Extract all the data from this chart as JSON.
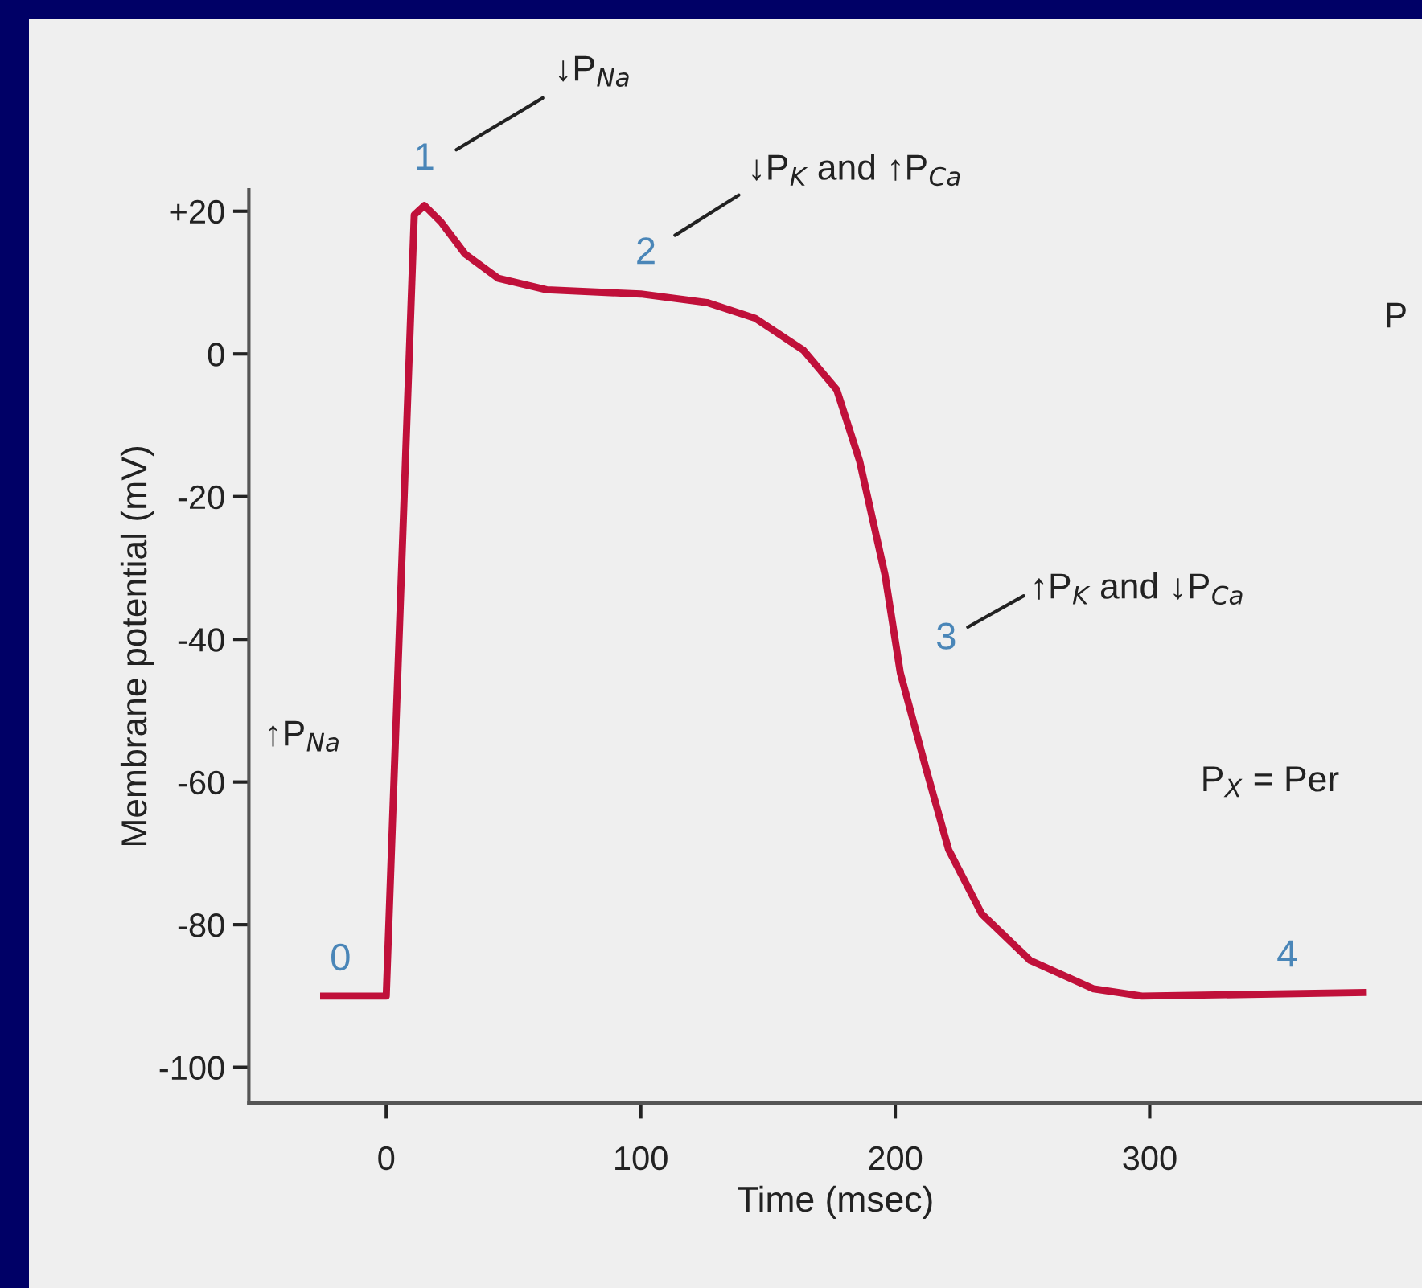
{
  "chart_data": {
    "type": "line",
    "xlabel": "Time (msec)",
    "ylabel": "Membrane potential (mV)",
    "xlim": [
      -54,
      407
    ],
    "ylim": [
      -105,
      23
    ],
    "xticks": [
      0,
      100,
      200,
      300
    ],
    "yticks": [
      {
        "value": 20,
        "label": "+20"
      },
      0,
      -20,
      -40,
      -60,
      -80,
      -100
    ],
    "grid": false,
    "legend": false,
    "marker": "none",
    "line_style": "solid",
    "series": [
      {
        "color": "#c0103a",
        "x": [
          -26,
          0,
          11,
          15,
          21.5,
          31,
          44,
          63,
          100,
          126,
          145,
          164,
          177,
          186,
          196,
          202,
          212,
          221,
          234,
          253,
          278,
          297,
          385
        ],
        "values": [
          -90,
          -90,
          19.5,
          20.8,
          18.5,
          14,
          10.6,
          9,
          8.4,
          7.2,
          5,
          0.5,
          -5,
          -15,
          -31,
          -44.7,
          -58,
          -69.5,
          -78.5,
          -85,
          -89,
          -90,
          -89.5
        ]
      }
    ],
    "annotations": [
      "1",
      "↓P$_{Na}$",
      "2",
      "↓P$_{K}$ and ↑P$_{Ca}$",
      "3",
      "↑P$_{K}$ and ↓P$_{Ca}$",
      "0",
      "↑P$_{Na}$",
      "4",
      "P",
      "P$_{X}$ = Per"
    ]
  }
}
